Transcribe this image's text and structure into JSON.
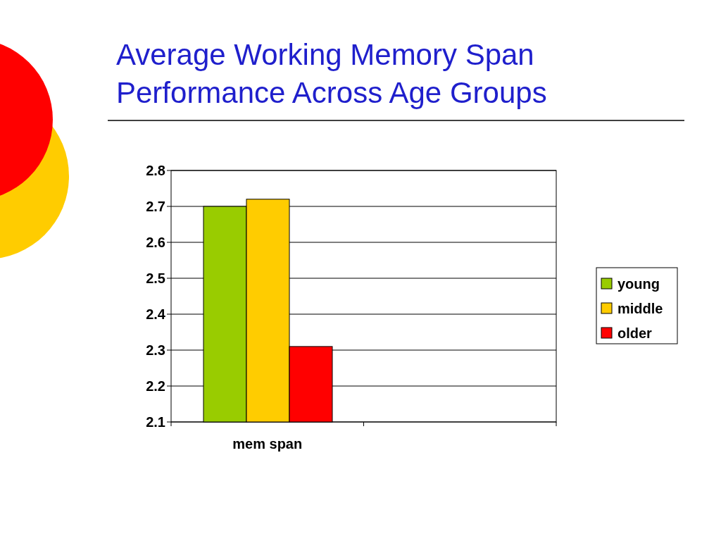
{
  "chart_data": {
    "type": "bar",
    "title": "Average Working Memory Span\nPerformance Across Age Groups",
    "categories": [
      "mem span",
      null
    ],
    "series": [
      {
        "name": "young",
        "color": "#99cc00",
        "values": [
          2.7,
          null
        ]
      },
      {
        "name": "middle",
        "color": "#ffcc00",
        "values": [
          2.72,
          null
        ]
      },
      {
        "name": "older",
        "color": "#ff0000",
        "values": [
          2.31,
          null
        ]
      }
    ],
    "ylim": [
      2.1,
      2.8
    ],
    "yticks": [
      2.1,
      2.2,
      2.3,
      2.4,
      2.5,
      2.6,
      2.7,
      2.8
    ],
    "grid": "y",
    "legend": "right"
  }
}
